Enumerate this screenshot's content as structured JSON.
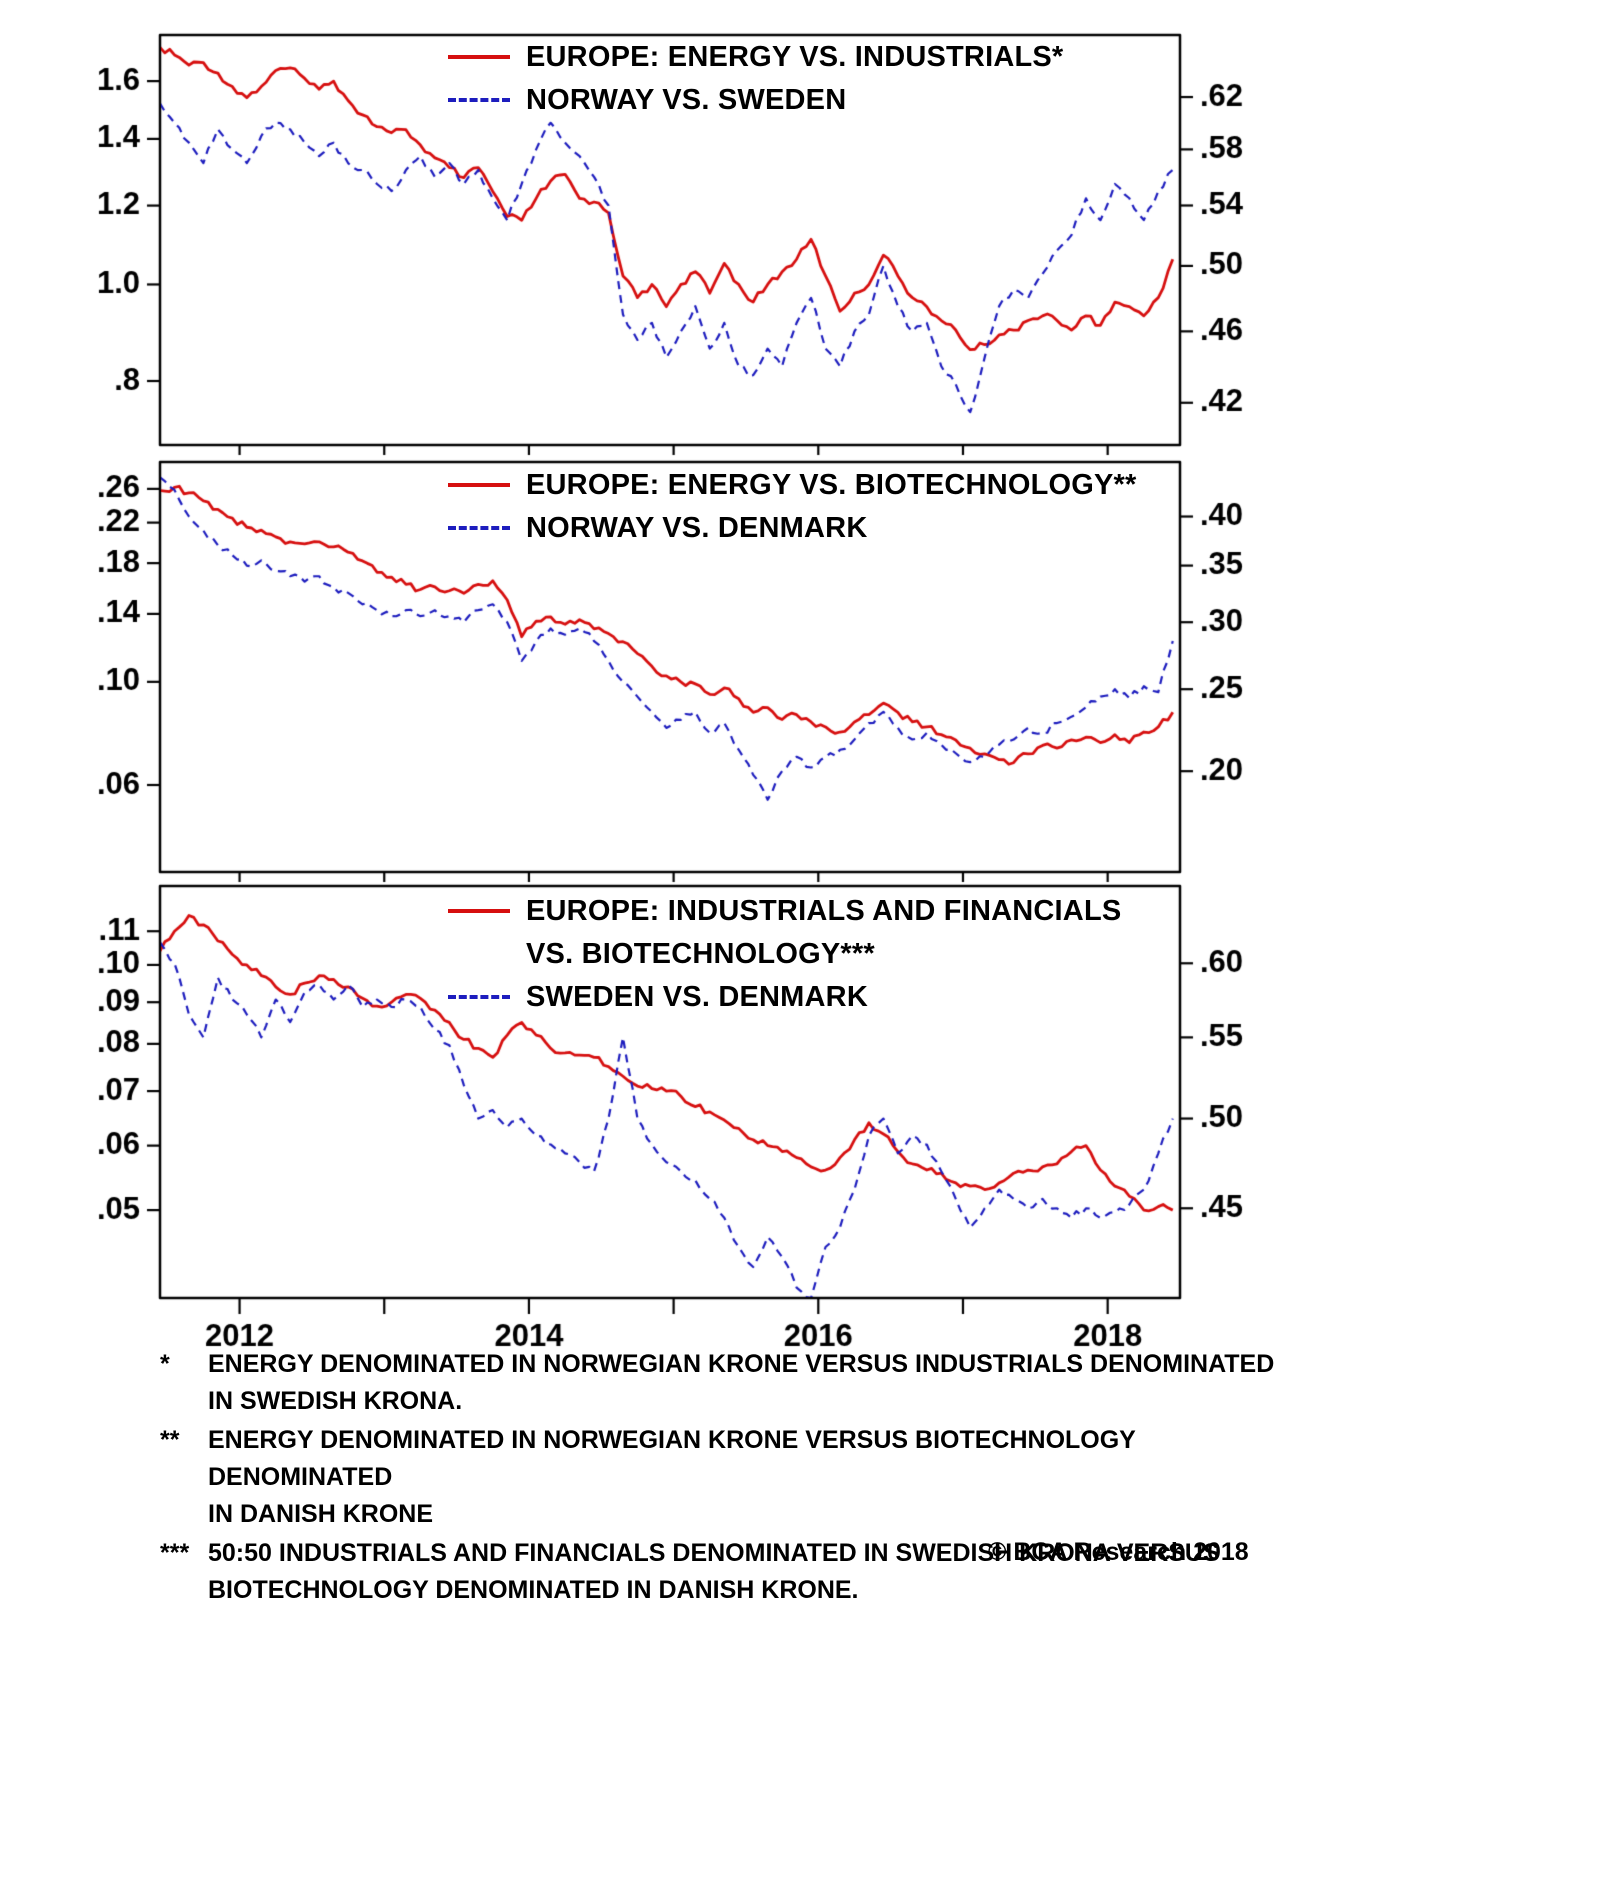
{
  "colors": {
    "red": "#d60f0f",
    "blue": "#1d1dbe",
    "axis": "#000000",
    "text": "#000000"
  },
  "branding": {
    "copyright": "© BCA Research 2018"
  },
  "x_axis": {
    "min": 2011.45,
    "max": 2018.5,
    "major_ticks": [
      2012,
      2014,
      2016,
      2018
    ],
    "major_labels": [
      "2012",
      "2014",
      "2016",
      "2018"
    ],
    "minor_ticks": [
      2013,
      2015,
      2017
    ]
  },
  "chart_data": [
    {
      "type": "line",
      "x_start": 2011.45,
      "x_step": 0.1,
      "legend_rows": [
        {
          "sample": "red",
          "text": "EUROPE: ENERGY VS. INDUSTRIALS*"
        },
        {
          "sample": "blue",
          "text": "NORWAY VS. SWEDEN"
        }
      ],
      "left_axis": {
        "scale": "log",
        "min": 0.69,
        "max": 1.78,
        "ticks": [
          1.6,
          1.4,
          1.2,
          1.0,
          0.8
        ],
        "labels": [
          "1.6",
          "1.4",
          "1.2",
          "1.0",
          ".8"
        ]
      },
      "right_axis": {
        "scale": "log",
        "min": 0.398,
        "max": 0.671,
        "ticks": [
          0.62,
          0.58,
          0.54,
          0.5,
          0.46,
          0.42
        ],
        "labels": [
          ".62",
          ".58",
          ".54",
          ".50",
          ".46",
          ".42"
        ]
      },
      "series": [
        {
          "name": "EUROPE: ENERGY VS. INDUSTRIALS*",
          "axis": "left",
          "color": "red",
          "style": "solid",
          "values": [
            1.73,
            1.7,
            1.66,
            1.67,
            1.63,
            1.58,
            1.54,
            1.58,
            1.64,
            1.65,
            1.61,
            1.57,
            1.6,
            1.53,
            1.48,
            1.44,
            1.42,
            1.43,
            1.38,
            1.34,
            1.31,
            1.28,
            1.31,
            1.24,
            1.17,
            1.16,
            1.22,
            1.27,
            1.29,
            1.22,
            1.21,
            1.18,
            1.02,
            0.97,
            1.0,
            0.95,
            1.0,
            1.03,
            0.98,
            1.05,
            1.0,
            0.96,
            1.0,
            1.03,
            1.06,
            1.11,
            1.02,
            0.94,
            0.98,
            1.0,
            1.07,
            1.02,
            0.97,
            0.95,
            0.92,
            0.9,
            0.86,
            0.87,
            0.89,
            0.9,
            0.92,
            0.93,
            0.92,
            0.9,
            0.93,
            0.91,
            0.96,
            0.95,
            0.93,
            0.97,
            1.06
          ]
        },
        {
          "name": "NORWAY VS. SWEDEN",
          "axis": "right",
          "color": "blue",
          "style": "dashed",
          "values": [
            0.615,
            0.6,
            0.585,
            0.57,
            0.595,
            0.58,
            0.57,
            0.59,
            0.6,
            0.595,
            0.585,
            0.575,
            0.585,
            0.57,
            0.565,
            0.555,
            0.55,
            0.565,
            0.575,
            0.56,
            0.57,
            0.555,
            0.565,
            0.545,
            0.53,
            0.555,
            0.58,
            0.6,
            0.585,
            0.575,
            0.56,
            0.54,
            0.47,
            0.455,
            0.465,
            0.445,
            0.46,
            0.475,
            0.45,
            0.465,
            0.44,
            0.435,
            0.45,
            0.44,
            0.465,
            0.48,
            0.45,
            0.44,
            0.46,
            0.47,
            0.5,
            0.475,
            0.46,
            0.465,
            0.44,
            0.43,
            0.415,
            0.445,
            0.475,
            0.485,
            0.48,
            0.495,
            0.51,
            0.52,
            0.545,
            0.53,
            0.555,
            0.545,
            0.53,
            0.55,
            0.565
          ]
        }
      ]
    },
    {
      "type": "line",
      "x_start": 2011.45,
      "x_step": 0.1,
      "legend_rows": [
        {
          "sample": "red",
          "text": "EUROPE: ENERGY VS. BIOTECHNOLOGY**"
        },
        {
          "sample": "blue",
          "text": "NORWAY VS. DENMARK"
        }
      ],
      "left_axis": {
        "scale": "log",
        "min": 0.039,
        "max": 0.297,
        "ticks": [
          0.26,
          0.22,
          0.18,
          0.14,
          0.1,
          0.06
        ],
        "labels": [
          ".26",
          ".22",
          ".18",
          ".14",
          ".10",
          ".06"
        ]
      },
      "right_axis": {
        "scale": "log",
        "min": 0.152,
        "max": 0.464,
        "ticks": [
          0.4,
          0.35,
          0.3,
          0.25,
          0.2
        ],
        "labels": [
          ".40",
          ".35",
          ".30",
          ".25",
          ".20"
        ]
      },
      "series": [
        {
          "name": "EUROPE: ENERGY VS. BIOTECHNOLOGY**",
          "axis": "left",
          "color": "red",
          "style": "solid",
          "values": [
            0.258,
            0.262,
            0.255,
            0.245,
            0.235,
            0.225,
            0.215,
            0.212,
            0.205,
            0.2,
            0.198,
            0.2,
            0.195,
            0.19,
            0.182,
            0.172,
            0.168,
            0.162,
            0.158,
            0.16,
            0.157,
            0.155,
            0.162,
            0.165,
            0.15,
            0.125,
            0.135,
            0.138,
            0.133,
            0.136,
            0.13,
            0.127,
            0.122,
            0.115,
            0.108,
            0.103,
            0.1,
            0.099,
            0.094,
            0.097,
            0.092,
            0.086,
            0.088,
            0.083,
            0.085,
            0.082,
            0.08,
            0.078,
            0.082,
            0.085,
            0.09,
            0.086,
            0.082,
            0.08,
            0.077,
            0.075,
            0.072,
            0.07,
            0.068,
            0.067,
            0.07,
            0.073,
            0.072,
            0.075,
            0.076,
            0.074,
            0.077,
            0.074,
            0.078,
            0.08,
            0.086
          ]
        },
        {
          "name": "NORWAY VS. DENMARK",
          "axis": "right",
          "color": "blue",
          "style": "dashed",
          "values": [
            0.445,
            0.43,
            0.4,
            0.385,
            0.37,
            0.36,
            0.35,
            0.355,
            0.345,
            0.34,
            0.335,
            0.34,
            0.33,
            0.325,
            0.315,
            0.31,
            0.305,
            0.31,
            0.305,
            0.31,
            0.305,
            0.3,
            0.31,
            0.315,
            0.3,
            0.27,
            0.285,
            0.295,
            0.29,
            0.295,
            0.285,
            0.27,
            0.255,
            0.245,
            0.235,
            0.225,
            0.23,
            0.235,
            0.222,
            0.228,
            0.212,
            0.198,
            0.185,
            0.2,
            0.208,
            0.202,
            0.208,
            0.212,
            0.218,
            0.228,
            0.235,
            0.225,
            0.218,
            0.222,
            0.215,
            0.21,
            0.205,
            0.208,
            0.215,
            0.218,
            0.225,
            0.222,
            0.228,
            0.232,
            0.238,
            0.245,
            0.25,
            0.244,
            0.252,
            0.248,
            0.285
          ]
        }
      ]
    },
    {
      "type": "line",
      "x_start": 2011.45,
      "x_step": 0.1,
      "legend_rows": [
        {
          "sample": "red",
          "text": "EUROPE: INDUSTRIALS AND FINANCIALS"
        },
        {
          "sample": "none",
          "text": "VS. BIOTECHNOLOGY***"
        },
        {
          "sample": "blue",
          "text": "SWEDEN VS. DENMARK"
        }
      ],
      "left_axis": {
        "scale": "log",
        "min": 0.039,
        "max": 0.125,
        "ticks": [
          0.11,
          0.1,
          0.09,
          0.08,
          0.07,
          0.06,
          0.05
        ],
        "labels": [
          ".11",
          ".10",
          ".09",
          ".08",
          ".07",
          ".06",
          ".05"
        ]
      },
      "right_axis": {
        "scale": "log",
        "min": 0.405,
        "max": 0.657,
        "ticks": [
          0.6,
          0.55,
          0.5,
          0.45
        ],
        "labels": [
          ".60",
          ".55",
          ".50",
          ".45"
        ]
      },
      "series": [
        {
          "name": "EUROPE: INDUSTRIALS AND FINANCIALS VS. BIOTECHNOLOGY***",
          "axis": "left",
          "color": "red",
          "style": "solid",
          "values": [
            0.104,
            0.11,
            0.115,
            0.112,
            0.107,
            0.103,
            0.1,
            0.097,
            0.094,
            0.092,
            0.095,
            0.097,
            0.096,
            0.094,
            0.091,
            0.089,
            0.09,
            0.092,
            0.091,
            0.088,
            0.085,
            0.081,
            0.079,
            0.077,
            0.082,
            0.085,
            0.082,
            0.079,
            0.078,
            0.0775,
            0.077,
            0.075,
            0.073,
            0.071,
            0.0705,
            0.07,
            0.069,
            0.067,
            0.066,
            0.0645,
            0.063,
            0.061,
            0.06,
            0.059,
            0.058,
            0.0565,
            0.056,
            0.058,
            0.061,
            0.064,
            0.062,
            0.059,
            0.057,
            0.056,
            0.0555,
            0.054,
            0.0535,
            0.053,
            0.054,
            0.0555,
            0.056,
            0.0565,
            0.057,
            0.059,
            0.06,
            0.056,
            0.0535,
            0.052,
            0.05,
            0.0505,
            0.05
          ]
        },
        {
          "name": "SWEDEN VS. DENMARK",
          "axis": "right",
          "color": "blue",
          "style": "dashed",
          "values": [
            0.615,
            0.6,
            0.565,
            0.55,
            0.59,
            0.575,
            0.565,
            0.55,
            0.575,
            0.56,
            0.58,
            0.585,
            0.575,
            0.585,
            0.57,
            0.575,
            0.57,
            0.575,
            0.57,
            0.555,
            0.545,
            0.52,
            0.5,
            0.505,
            0.495,
            0.5,
            0.49,
            0.485,
            0.48,
            0.475,
            0.47,
            0.5,
            0.55,
            0.5,
            0.485,
            0.475,
            0.47,
            0.465,
            0.455,
            0.445,
            0.43,
            0.42,
            0.435,
            0.425,
            0.41,
            0.405,
            0.43,
            0.44,
            0.46,
            0.49,
            0.5,
            0.48,
            0.49,
            0.485,
            0.47,
            0.455,
            0.44,
            0.45,
            0.46,
            0.455,
            0.45,
            0.455,
            0.45,
            0.445,
            0.45,
            0.445,
            0.448,
            0.452,
            0.46,
            0.48,
            0.5
          ]
        }
      ]
    }
  ],
  "footnotes": [
    {
      "marker": "*",
      "line1": "ENERGY DENOMINATED IN NORWEGIAN KRONE VERSUS INDUSTRIALS DENOMINATED",
      "line2": "IN SWEDISH KRONA."
    },
    {
      "marker": "**",
      "line1": "ENERGY DENOMINATED IN NORWEGIAN KRONE VERSUS BIOTECHNOLOGY DENOMINATED",
      "line2": "IN DANISH KRONE"
    },
    {
      "marker": "***",
      "line1": "50:50 INDUSTRIALS AND FINANCIALS DENOMINATED IN SWEDISH KRONA VERSUS",
      "line2": "BIOTECHNOLOGY DENOMINATED IN DANISH KRONE."
    }
  ]
}
